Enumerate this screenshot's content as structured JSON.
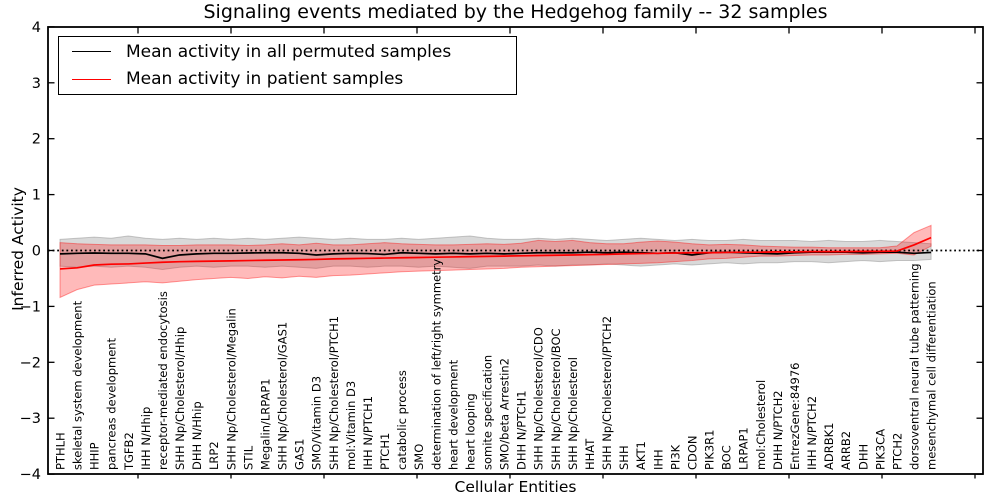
{
  "colors": {
    "permuted_line": "#000000",
    "patient_line": "#ff0000",
    "permuted_band": "#808080",
    "patient_band": "#ff0000",
    "axis": "#000000",
    "background": "#ffffff"
  },
  "chart_data": {
    "type": "line",
    "title": "Signaling events mediated by the Hedgehog family -- 32 samples",
    "xlabel": "Cellular Entities",
    "ylabel": "Inferred Activity",
    "ylim": [
      -4,
      4
    ],
    "grid": false,
    "legend_position": "upper left",
    "sample_count_note": "32 samples",
    "yticks": [
      {
        "value": 4,
        "label": "4"
      },
      {
        "value": 3,
        "label": "3"
      },
      {
        "value": 2,
        "label": "2"
      },
      {
        "value": 1,
        "label": "1"
      },
      {
        "value": 0,
        "label": "0"
      },
      {
        "value": -1,
        "label": "−1"
      },
      {
        "value": -2,
        "label": "−2"
      },
      {
        "value": -3,
        "label": "−3"
      },
      {
        "value": -4,
        "label": "−4"
      }
    ],
    "reference_line": {
      "y": 0,
      "style": "dotted",
      "color": "#000000"
    },
    "categories": [
      "PTHLH",
      "skeletal system development",
      "HHIP",
      "pancreas development",
      "TGFB2",
      "IHH N/Hhip",
      "receptor-mediated endocytosis",
      "SHH Np/Cholesterol/Hhip",
      "DHH N/Hhip",
      "LRP2",
      "SHH Np/Cholesterol/Megalin",
      "STIL",
      "Megalin/LRPAP1",
      "SHH Np/Cholesterol/GAS1",
      "GAS1",
      "SMO/Vitamin D3",
      "SHH Np/Cholesterol/PTCH1",
      "mol:Vitamin D3",
      "IHH N/PTCH1",
      "PTCH1",
      "catabolic process",
      "SMO",
      "determination of left/right symmetry",
      "heart development",
      "heart looping",
      "somite specification",
      "SMO/beta Arrestin2",
      "DHH N/PTCH1",
      "SHH Np/Cholesterol/CDO",
      "SHH Np/Cholesterol/BOC",
      "SHH Np/Cholesterol",
      "HHAT",
      "SHH Np/Cholesterol/PTCH2",
      "SHH",
      "AKT1",
      "IHH",
      "PI3K",
      "CDON",
      "PIK3R1",
      "BOC",
      "LRPAP1",
      "mol:Cholesterol",
      "DHH N/PTCH2",
      "EntrezGene:84976",
      "IHH N/PTCH2",
      "ADRBK1",
      "ARRB2",
      "DHH",
      "PIK3CA",
      "PTCH2",
      "dorsoventral neural tube patterning",
      "mesenchymal cell differentiation"
    ],
    "series": [
      {
        "name": "Mean activity in all permuted samples",
        "color": "#000000",
        "band_color": "#808080",
        "band_opacity": 0.3,
        "values": [
          -0.06,
          -0.05,
          -0.045,
          -0.05,
          -0.05,
          -0.06,
          -0.14,
          -0.08,
          -0.06,
          -0.05,
          -0.05,
          -0.045,
          -0.04,
          -0.04,
          -0.05,
          -0.08,
          -0.06,
          -0.05,
          -0.055,
          -0.07,
          -0.04,
          -0.05,
          -0.06,
          -0.05,
          -0.06,
          -0.05,
          -0.06,
          -0.05,
          -0.04,
          -0.04,
          -0.04,
          -0.03,
          -0.04,
          -0.03,
          -0.04,
          -0.05,
          -0.04,
          -0.08,
          -0.04,
          -0.03,
          -0.04,
          -0.05,
          -0.06,
          -0.04,
          -0.03,
          -0.03,
          -0.03,
          -0.04,
          -0.03,
          -0.03,
          -0.05,
          -0.035
        ],
        "band_hi": [
          0.2,
          0.22,
          0.24,
          0.22,
          0.26,
          0.22,
          0.2,
          0.22,
          0.2,
          0.22,
          0.2,
          0.22,
          0.2,
          0.22,
          0.24,
          0.22,
          0.2,
          0.22,
          0.2,
          0.2,
          0.22,
          0.2,
          0.22,
          0.24,
          0.26,
          0.22,
          0.2,
          0.2,
          0.22,
          0.2,
          0.22,
          0.2,
          0.18,
          0.2,
          0.22,
          0.2,
          0.18,
          0.2,
          0.18,
          0.18,
          0.2,
          0.18,
          0.18,
          0.18,
          0.16,
          0.18,
          0.16,
          0.16,
          0.18,
          0.16,
          0.14,
          0.12
        ],
        "band_lo": [
          -0.28,
          -0.3,
          -0.28,
          -0.3,
          -0.28,
          -0.3,
          -0.34,
          -0.3,
          -0.28,
          -0.3,
          -0.28,
          -0.28,
          -0.3,
          -0.28,
          -0.3,
          -0.32,
          -0.28,
          -0.28,
          -0.3,
          -0.28,
          -0.28,
          -0.3,
          -0.28,
          -0.3,
          -0.32,
          -0.28,
          -0.28,
          -0.28,
          -0.26,
          -0.28,
          -0.26,
          -0.26,
          -0.24,
          -0.26,
          -0.28,
          -0.26,
          -0.24,
          -0.26,
          -0.24,
          -0.22,
          -0.24,
          -0.22,
          -0.22,
          -0.2,
          -0.2,
          -0.22,
          -0.2,
          -0.18,
          -0.2,
          -0.18,
          -0.18,
          -0.16
        ]
      },
      {
        "name": "Mean activity in patient samples",
        "color": "#ff0000",
        "band_color": "#ff0000",
        "band_opacity": 0.27,
        "values": [
          -0.33,
          -0.31,
          -0.26,
          -0.245,
          -0.24,
          -0.225,
          -0.21,
          -0.2,
          -0.195,
          -0.19,
          -0.185,
          -0.18,
          -0.175,
          -0.17,
          -0.165,
          -0.16,
          -0.15,
          -0.145,
          -0.14,
          -0.135,
          -0.13,
          -0.125,
          -0.12,
          -0.115,
          -0.11,
          -0.105,
          -0.1,
          -0.095,
          -0.09,
          -0.085,
          -0.08,
          -0.075,
          -0.07,
          -0.06,
          -0.055,
          -0.05,
          -0.045,
          -0.04,
          -0.04,
          -0.035,
          -0.03,
          -0.03,
          -0.025,
          -0.025,
          -0.02,
          -0.02,
          -0.02,
          -0.015,
          -0.015,
          -0.01,
          0.1,
          0.23
        ],
        "band_hi": [
          0.14,
          0.12,
          0.11,
          0.1,
          0.1,
          0.1,
          0.09,
          0.09,
          0.1,
          0.1,
          0.1,
          0.09,
          0.1,
          0.12,
          0.1,
          0.13,
          0.1,
          0.1,
          0.12,
          0.14,
          0.12,
          0.11,
          0.1,
          0.1,
          0.11,
          0.12,
          0.11,
          0.13,
          0.18,
          0.16,
          0.18,
          0.14,
          0.12,
          0.12,
          0.15,
          0.17,
          0.15,
          0.12,
          0.1,
          0.11,
          0.1,
          0.08,
          0.07,
          0.06,
          0.06,
          0.05,
          0.05,
          0.05,
          0.05,
          0.08,
          0.32,
          0.45
        ],
        "band_lo": [
          -0.84,
          -0.7,
          -0.62,
          -0.6,
          -0.58,
          -0.56,
          -0.58,
          -0.55,
          -0.52,
          -0.5,
          -0.48,
          -0.5,
          -0.47,
          -0.49,
          -0.46,
          -0.48,
          -0.45,
          -0.44,
          -0.42,
          -0.4,
          -0.38,
          -0.37,
          -0.36,
          -0.35,
          -0.34,
          -0.33,
          -0.32,
          -0.3,
          -0.29,
          -0.28,
          -0.27,
          -0.26,
          -0.25,
          -0.24,
          -0.23,
          -0.22,
          -0.2,
          -0.18,
          -0.15,
          -0.14,
          -0.12,
          -0.1,
          -0.1,
          -0.09,
          -0.08,
          -0.08,
          -0.07,
          -0.07,
          -0.06,
          -0.05,
          -0.08,
          0.08
        ]
      }
    ]
  }
}
